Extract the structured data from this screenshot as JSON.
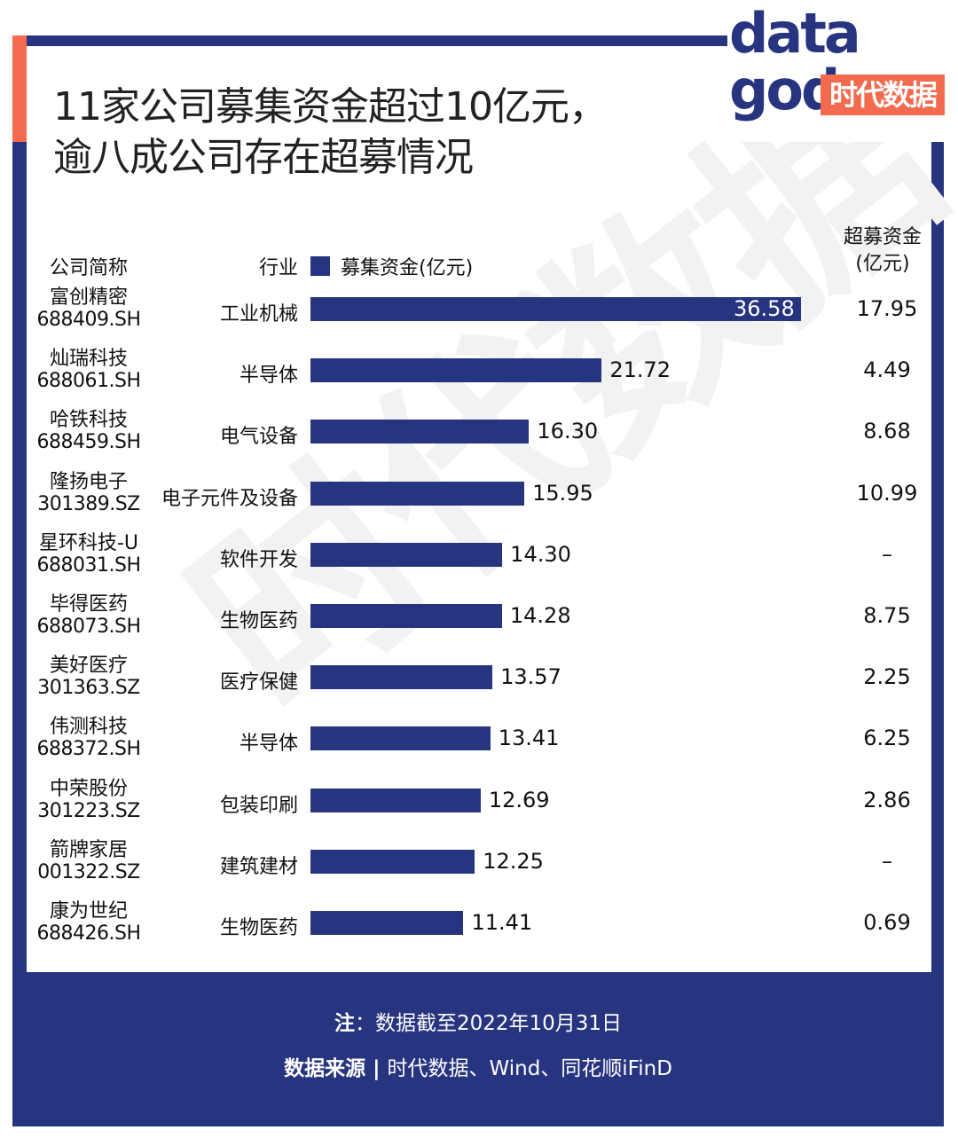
{
  "title": {
    "line1": "11家公司募集资金超过10亿元，",
    "line2": "逾八成公司存在超募情况"
  },
  "logo": {
    "word_line1": "data",
    "word_line2": "god",
    "badge": "时代数据"
  },
  "watermark": "时代数据",
  "headers": {
    "company": "公司简称",
    "industry": "行业",
    "legend": "募集资金(亿元)",
    "excess_line1": "超募资金",
    "excess_line2": "(亿元)"
  },
  "colors": {
    "bar": "#27347f",
    "accent": "#f26b4f",
    "frame": "#27347f"
  },
  "chart_data": {
    "type": "bar",
    "orientation": "horizontal",
    "title": "11家公司募集资金超过10亿元，逾八成公司存在超募情况",
    "series": [
      {
        "name": "募集资金(亿元)",
        "values": [
          36.58,
          21.72,
          16.3,
          15.95,
          14.3,
          14.28,
          13.57,
          13.41,
          12.69,
          12.25,
          11.41
        ]
      }
    ],
    "xlim": [
      0,
      36.58
    ],
    "rows": [
      {
        "name": "富创精密",
        "code": "688409.SH",
        "industry": "工业机械",
        "value": 36.58,
        "label": "36.58",
        "excess": "17.95"
      },
      {
        "name": "灿瑞科技",
        "code": "688061.SH",
        "industry": "半导体",
        "value": 21.72,
        "label": "21.72",
        "excess": "4.49"
      },
      {
        "name": "哈铁科技",
        "code": "688459.SH",
        "industry": "电气设备",
        "value": 16.3,
        "label": "16.30",
        "excess": "8.68"
      },
      {
        "name": "隆扬电子",
        "code": "301389.SZ",
        "industry": "电子元件及设备",
        "value": 15.95,
        "label": "15.95",
        "excess": "10.99"
      },
      {
        "name": "星环科技-U",
        "code": "688031.SH",
        "industry": "软件开发",
        "value": 14.3,
        "label": "14.30",
        "excess": "–"
      },
      {
        "name": "毕得医药",
        "code": "688073.SH",
        "industry": "生物医药",
        "value": 14.28,
        "label": "14.28",
        "excess": "8.75"
      },
      {
        "name": "美好医疗",
        "code": "301363.SZ",
        "industry": "医疗保健",
        "value": 13.57,
        "label": "13.57",
        "excess": "2.25"
      },
      {
        "name": "伟测科技",
        "code": "688372.SH",
        "industry": "半导体",
        "value": 13.41,
        "label": "13.41",
        "excess": "6.25"
      },
      {
        "name": "中荣股份",
        "code": "301223.SZ",
        "industry": "包装印刷",
        "value": 12.69,
        "label": "12.69",
        "excess": "2.86"
      },
      {
        "name": "箭牌家居",
        "code": "001322.SZ",
        "industry": "建筑建材",
        "value": 12.25,
        "label": "12.25",
        "excess": "–"
      },
      {
        "name": "康为世纪",
        "code": "688426.SH",
        "industry": "生物医药",
        "value": 11.41,
        "label": "11.41",
        "excess": "0.69"
      }
    ]
  },
  "footer": {
    "note_label": "注",
    "note_sep": "：",
    "note_text": "数据截至2022年10月31日",
    "source_label": "数据来源",
    "source_sep": " | ",
    "source_text": "时代数据、Wind、同花顺iFinD"
  }
}
